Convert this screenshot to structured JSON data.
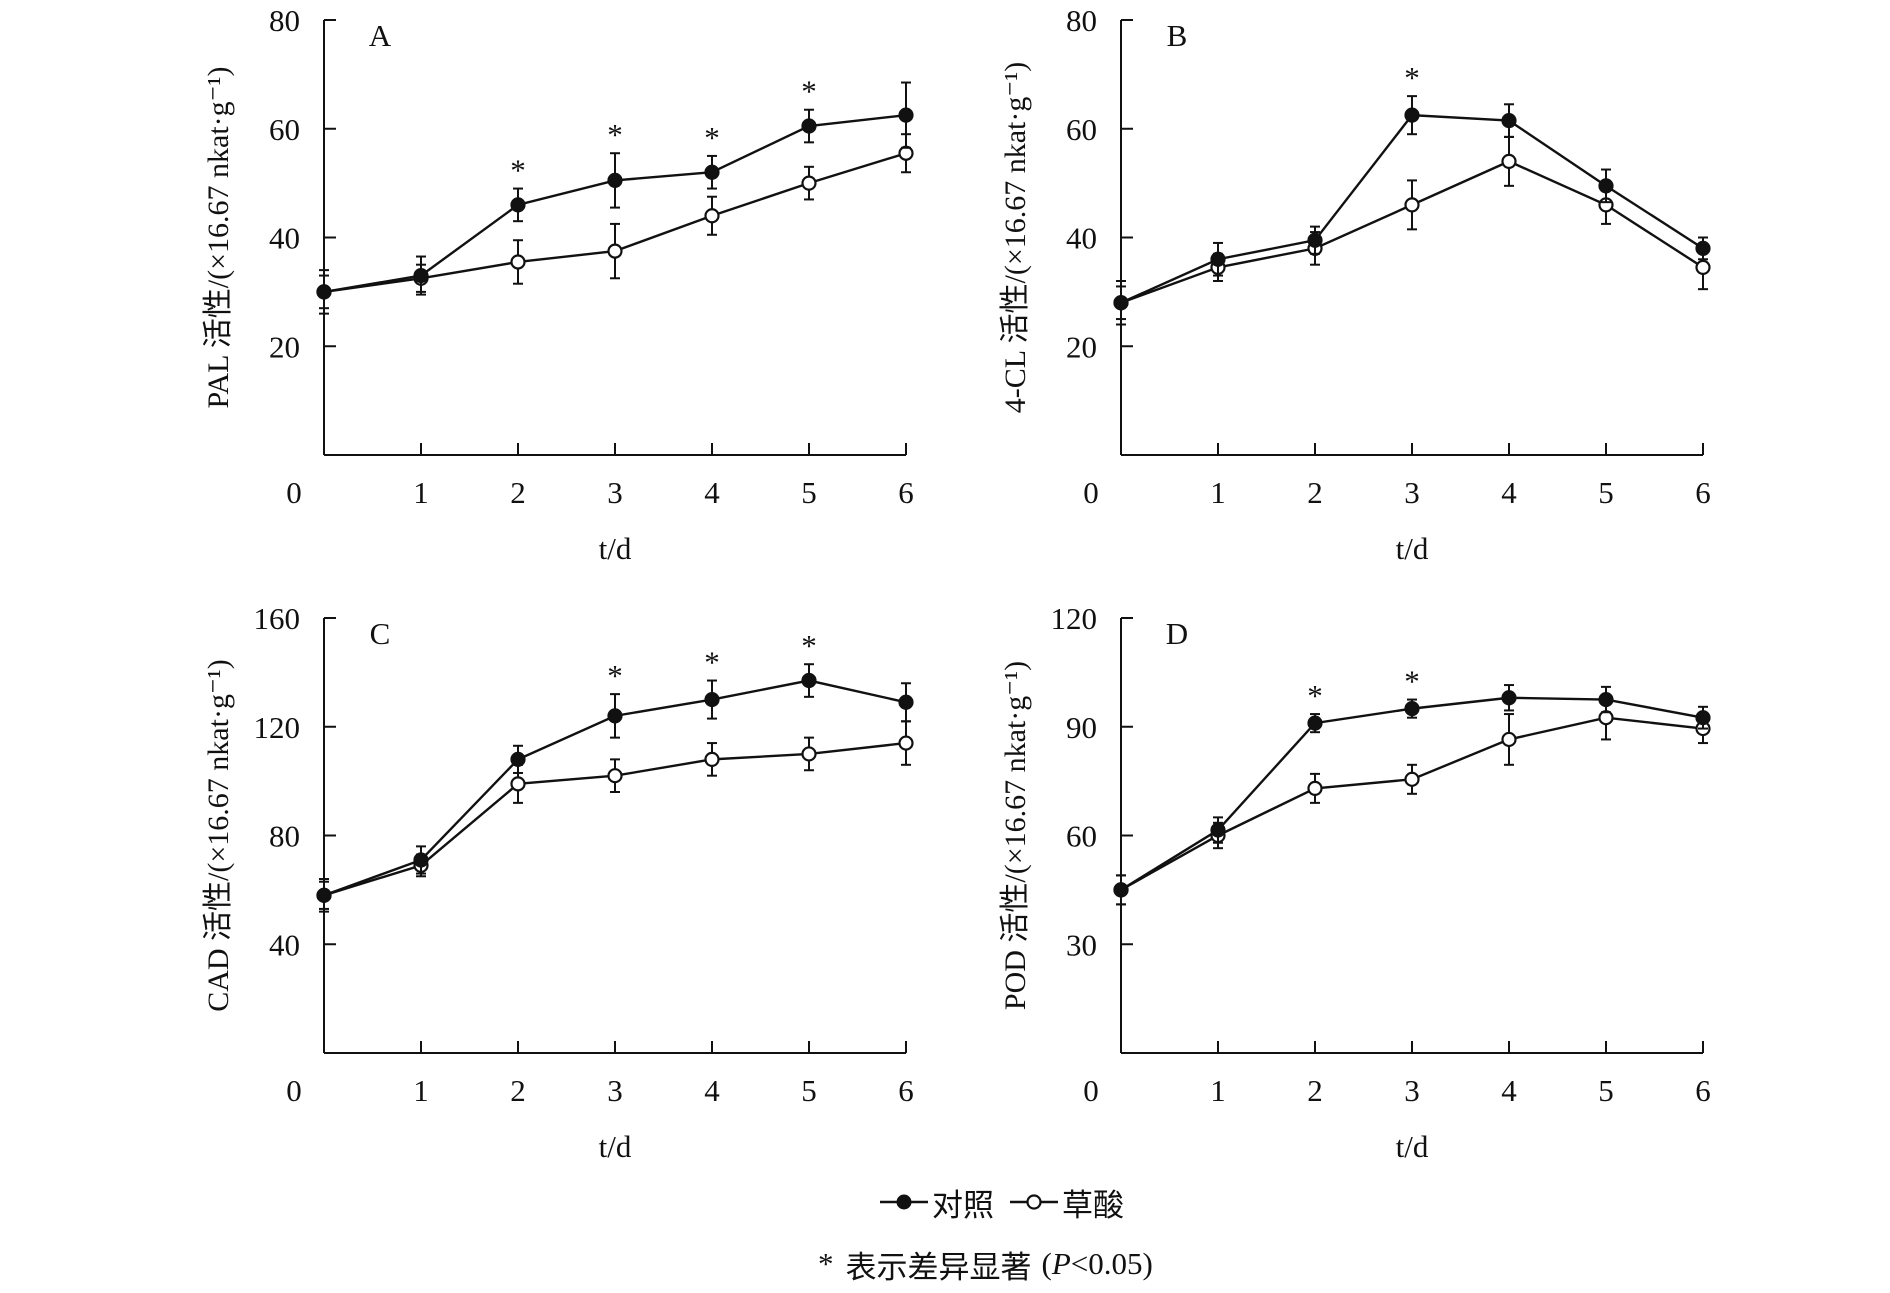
{
  "chart_data": [
    {
      "type": "line",
      "panel": "A",
      "ylabel": "PAL 活性/(×16.67 nkat·g⁻¹)",
      "xlabel": "t/d",
      "x": [
        0,
        1,
        2,
        3,
        4,
        5,
        6
      ],
      "xticks": [
        "0",
        "1",
        "2",
        "3",
        "4",
        "5",
        "6"
      ],
      "ylim": [
        0,
        80
      ],
      "yticks": [
        "20",
        "40",
        "60",
        "80"
      ],
      "series": [
        {
          "name": "对照",
          "values": [
            30,
            33,
            46,
            50.5,
            52,
            60.5,
            62.5
          ],
          "errors": [
            3,
            3.5,
            3,
            5,
            3,
            3,
            6
          ]
        },
        {
          "name": "草酸",
          "values": [
            30,
            32.5,
            35.5,
            37.5,
            44,
            50,
            55.5
          ],
          "errors": [
            4,
            2.5,
            4,
            5,
            3.5,
            3,
            3.5
          ]
        }
      ],
      "significance_markers": [
        "",
        "",
        "*",
        "*",
        "*",
        "*",
        ""
      ]
    },
    {
      "type": "line",
      "panel": "B",
      "ylabel": "4-CL 活性/(×16.67 nkat·g⁻¹)",
      "xlabel": "t/d",
      "x": [
        0,
        1,
        2,
        3,
        4,
        5,
        6
      ],
      "xticks": [
        "0",
        "1",
        "2",
        "3",
        "4",
        "5",
        "6"
      ],
      "ylim": [
        0,
        80
      ],
      "yticks": [
        "20",
        "40",
        "60",
        "80"
      ],
      "series": [
        {
          "name": "对照",
          "values": [
            28,
            36,
            39.5,
            62.5,
            61.5,
            49.5,
            38
          ],
          "errors": [
            3,
            3,
            2.5,
            3.5,
            3,
            3,
            2
          ]
        },
        {
          "name": "草酸",
          "values": [
            28,
            34.5,
            38,
            46,
            54,
            46,
            34.5
          ],
          "errors": [
            4,
            2.5,
            3,
            4.5,
            4.5,
            3.5,
            4
          ]
        }
      ],
      "significance_markers": [
        "",
        "",
        "",
        "*",
        "",
        "",
        ""
      ]
    },
    {
      "type": "line",
      "panel": "C",
      "ylabel": "CAD 活性/(×16.67 nkat·g⁻¹)",
      "xlabel": "t/d",
      "x": [
        0,
        1,
        2,
        3,
        4,
        5,
        6
      ],
      "xticks": [
        "0",
        "1",
        "2",
        "3",
        "4",
        "5",
        "6"
      ],
      "ylim": [
        0,
        160
      ],
      "yticks": [
        "40",
        "80",
        "120",
        "160"
      ],
      "series": [
        {
          "name": "对照",
          "values": [
            58,
            71,
            108,
            124,
            130,
            137,
            129
          ],
          "errors": [
            5,
            5,
            5,
            8,
            7,
            6,
            7
          ]
        },
        {
          "name": "草酸",
          "values": [
            58,
            69,
            99,
            102,
            108,
            110,
            114
          ],
          "errors": [
            6,
            4,
            7,
            6,
            6,
            6,
            8
          ]
        }
      ],
      "significance_markers": [
        "",
        "",
        "",
        "*",
        "*",
        "*",
        ""
      ]
    },
    {
      "type": "line",
      "panel": "D",
      "ylabel": "POD 活性/(×16.67 nkat·g⁻¹)",
      "xlabel": "t/d",
      "x": [
        0,
        1,
        2,
        3,
        4,
        5,
        6
      ],
      "xticks": [
        "0",
        "1",
        "2",
        "3",
        "4",
        "5",
        "6"
      ],
      "ylim": [
        0,
        120
      ],
      "yticks": [
        "30",
        "60",
        "90",
        "120"
      ],
      "series": [
        {
          "name": "对照",
          "values": [
            45,
            61.5,
            91,
            95,
            98,
            97.5,
            92.5
          ],
          "errors": [
            4,
            3.5,
            2.5,
            2.5,
            3.5,
            3.5,
            3
          ]
        },
        {
          "name": "草酸",
          "values": [
            45,
            60,
            73,
            75.5,
            86.5,
            92.5,
            89.5
          ],
          "errors": [
            4,
            3.5,
            4,
            4,
            7,
            6,
            4
          ]
        }
      ],
      "significance_markers": [
        "",
        "",
        "*",
        "*",
        "",
        "",
        ""
      ]
    }
  ],
  "legend": {
    "entries": [
      {
        "label": "对照",
        "marker": "filled-circle"
      },
      {
        "label": "草酸",
        "marker": "open-circle"
      }
    ],
    "note_symbol": "*",
    "note_text": "表示差异显著",
    "note_paren_open": "(",
    "note_p": "P",
    "note_threshold": "<0.05)"
  },
  "colors": {
    "line": "#111111",
    "background": "#ffffff"
  }
}
